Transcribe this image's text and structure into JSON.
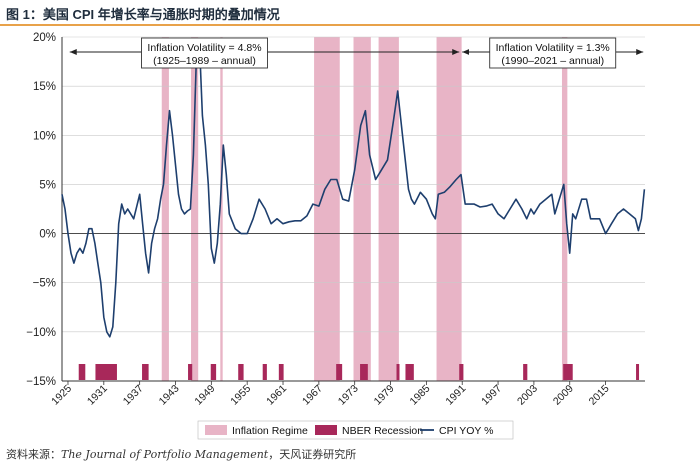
{
  "figure": {
    "title": "图 1：美国 CPI 年增长率与通胀时期的叠加情况",
    "source_prefix": "资料来源：",
    "source_journal": "The Journal of Portfolio Management",
    "source_suffix": "，天风证券研究所"
  },
  "colors": {
    "regime": "#e8b4c6",
    "recession": "#a8285a",
    "cpi": "#1e3f6e",
    "box_border": "#333333",
    "title_rule": "#e8a24a"
  },
  "chart_data": {
    "type": "line",
    "title": "",
    "xlabel": "",
    "ylabel": "",
    "xlim": [
      1924.0,
      2021.6
    ],
    "ylim": [
      -15,
      20
    ],
    "y_ticks": [
      20,
      15,
      10,
      5,
      0,
      -5,
      -10,
      -15
    ],
    "y_tick_labels": [
      "20%",
      "15%",
      "10%",
      "5%",
      "0%",
      "−5%",
      "−10%",
      "−15%"
    ],
    "x_ticks": [
      1925,
      1931,
      1937,
      1943,
      1949,
      1955,
      1961,
      1967,
      1973,
      1979,
      1985,
      1991,
      1997,
      2003,
      2009,
      2015
    ],
    "x_tick_labels": [
      "1925",
      "1931",
      "1937",
      "1943",
      "1949",
      "1955",
      "1961",
      "1967",
      "1973",
      "1979",
      "1985",
      "1991",
      "1997",
      "2003",
      "2009",
      "2015"
    ],
    "inflation_regimes": [
      [
        1940.7,
        1941.9
      ],
      [
        1945.6,
        1946.8
      ],
      [
        1950.5,
        1950.9
      ],
      [
        1966.2,
        1970.5
      ],
      [
        1972.8,
        1975.7
      ],
      [
        1977.0,
        1980.4
      ],
      [
        1986.7,
        1990.9
      ],
      [
        2007.7,
        2008.6
      ]
    ],
    "nber_recessions": [
      [
        1926.8,
        1927.9
      ],
      [
        1929.6,
        1933.2
      ],
      [
        1937.4,
        1938.5
      ],
      [
        1945.1,
        1945.8
      ],
      [
        1948.9,
        1949.8
      ],
      [
        1953.5,
        1954.4
      ],
      [
        1957.6,
        1958.3
      ],
      [
        1960.3,
        1961.1
      ],
      [
        1969.9,
        1970.9
      ],
      [
        1973.9,
        1975.2
      ],
      [
        1980.0,
        1980.5
      ],
      [
        1981.5,
        1982.9
      ],
      [
        1990.5,
        1991.2
      ],
      [
        2001.2,
        2001.9
      ],
      [
        2007.9,
        2009.5
      ],
      [
        2020.1,
        2020.5
      ]
    ],
    "series": [
      {
        "name": "CPI YOY %",
        "x": [
          1924.0,
          1924.5,
          1925.0,
          1925.5,
          1926.0,
          1926.5,
          1927.0,
          1927.5,
          1928.0,
          1928.5,
          1929.0,
          1929.5,
          1930.0,
          1930.5,
          1931.0,
          1931.5,
          1932.0,
          1932.5,
          1933.0,
          1933.5,
          1934.0,
          1934.5,
          1935.0,
          1936.0,
          1937.0,
          1937.5,
          1938.0,
          1938.5,
          1939.0,
          1939.5,
          1940.0,
          1940.5,
          1941.0,
          1941.5,
          1942.0,
          1942.5,
          1943.0,
          1943.5,
          1944.0,
          1944.5,
          1945.0,
          1945.5,
          1946.0,
          1946.5,
          1947.0,
          1947.5,
          1948.0,
          1948.5,
          1949.0,
          1949.5,
          1950.0,
          1950.5,
          1951.0,
          1951.5,
          1952.0,
          1953.0,
          1954.0,
          1955.0,
          1956.0,
          1957.0,
          1958.0,
          1959.0,
          1960.0,
          1961.0,
          1962.0,
          1963.0,
          1964.0,
          1965.0,
          1966.0,
          1967.0,
          1968.0,
          1969.0,
          1970.0,
          1971.0,
          1972.0,
          1973.0,
          1974.0,
          1974.8,
          1975.5,
          1976.5,
          1977.5,
          1978.5,
          1979.5,
          1980.2,
          1981.0,
          1982.0,
          1982.5,
          1983.0,
          1984.0,
          1985.0,
          1986.0,
          1986.5,
          1987.0,
          1988.0,
          1989.0,
          1990.0,
          1990.8,
          1991.5,
          1992.0,
          1993.0,
          1994.0,
          1995.0,
          1996.0,
          1997.0,
          1998.0,
          1999.0,
          2000.0,
          2001.0,
          2001.8,
          2002.5,
          2003.0,
          2004.0,
          2005.0,
          2006.0,
          2006.5,
          2007.0,
          2007.5,
          2008.0,
          2008.5,
          2009.0,
          2009.5,
          2010.0,
          2011.0,
          2011.8,
          2012.5,
          2013.0,
          2014.0,
          2015.0,
          2015.5,
          2016.0,
          2017.0,
          2018.0,
          2019.0,
          2020.0,
          2020.5,
          2021.0,
          2021.5
        ],
        "y": [
          4.0,
          2.5,
          0.0,
          -2.0,
          -3.0,
          -2.0,
          -1.5,
          -2.0,
          -1.0,
          0.5,
          0.5,
          -1.0,
          -3.0,
          -5.0,
          -8.5,
          -10.0,
          -10.5,
          -9.5,
          -5.0,
          1.0,
          3.0,
          2.0,
          2.5,
          1.5,
          4.0,
          1.0,
          -2.0,
          -4.0,
          -1.0,
          0.5,
          1.5,
          3.5,
          5.0,
          9.0,
          12.5,
          10.0,
          7.0,
          4.0,
          2.5,
          2.0,
          2.3,
          2.5,
          8.0,
          18.0,
          19.5,
          12.0,
          9.0,
          5.0,
          -1.5,
          -3.0,
          -1.0,
          3.0,
          9.0,
          6.0,
          2.0,
          0.5,
          0.0,
          0.0,
          1.5,
          3.5,
          2.5,
          1.0,
          1.5,
          1.0,
          1.2,
          1.3,
          1.3,
          1.8,
          3.0,
          2.8,
          4.5,
          5.5,
          5.5,
          3.5,
          3.3,
          6.5,
          11.0,
          12.5,
          8.0,
          5.5,
          6.5,
          7.5,
          11.5,
          14.5,
          10.0,
          4.5,
          3.5,
          3.0,
          4.2,
          3.5,
          2.0,
          1.5,
          4.0,
          4.2,
          4.8,
          5.5,
          6.0,
          3.0,
          3.0,
          3.0,
          2.7,
          2.8,
          3.0,
          2.0,
          1.5,
          2.5,
          3.5,
          2.5,
          1.5,
          2.5,
          2.0,
          3.0,
          3.5,
          4.0,
          2.0,
          3.0,
          4.0,
          5.0,
          1.0,
          -2.0,
          2.0,
          1.5,
          3.5,
          3.5,
          1.5,
          1.5,
          1.5,
          0.0,
          0.5,
          1.0,
          2.0,
          2.5,
          2.0,
          1.5,
          0.3,
          1.5,
          4.5
        ]
      }
    ],
    "annotations": [
      {
        "line1": "Inflation Volatility = 4.8%",
        "line2": "(1925–1989 – annual)",
        "arrow_from": 1925.3,
        "arrow_to": 1990.5
      },
      {
        "line1": "Inflation Volatility = 1.3%",
        "line2": "(1990–2021 – annual)",
        "arrow_from": 1991.0,
        "arrow_to": 2021.3
      }
    ],
    "legend": {
      "placement": "bottom",
      "items": [
        {
          "label": "Inflation Regime",
          "kind": "regime"
        },
        {
          "label": "NBER Recession",
          "kind": "recession"
        },
        {
          "label": "CPI YOY %",
          "kind": "line"
        }
      ]
    }
  }
}
